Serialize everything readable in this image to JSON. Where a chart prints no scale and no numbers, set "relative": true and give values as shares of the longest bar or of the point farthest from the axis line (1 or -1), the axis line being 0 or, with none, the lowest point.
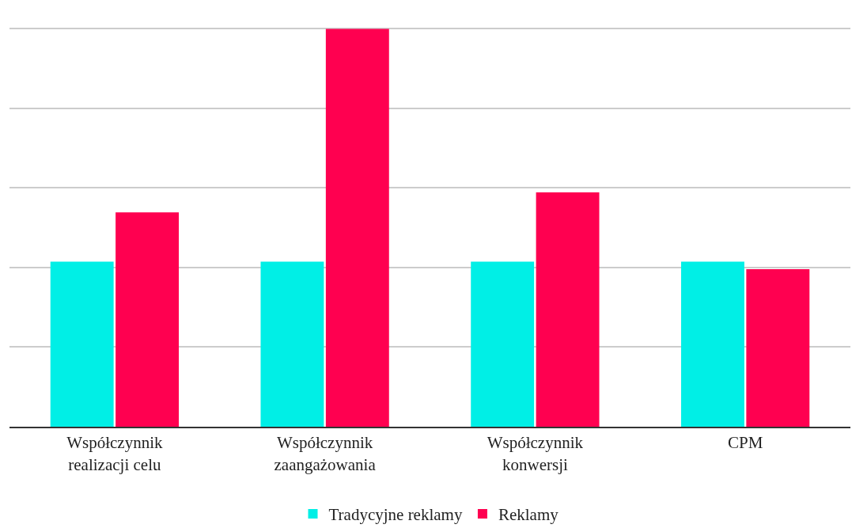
{
  "chart_data": {
    "type": "bar",
    "relative": true,
    "categories": [
      "Współczynnik\nrealizacji celu",
      "Współczynnik\nzaangażowania",
      "Współczynnik\nkonwersji",
      "CPM"
    ],
    "series": [
      {
        "name": "Tradycyjne reklamy",
        "color": "#00efe6",
        "values": [
          0.415,
          0.415,
          0.415,
          0.415
        ]
      },
      {
        "name": "Reklamy",
        "color": "#ff0050",
        "values": [
          0.539,
          1,
          0.589,
          0.396
        ]
      }
    ],
    "grid": "y",
    "legend": "bottom"
  }
}
